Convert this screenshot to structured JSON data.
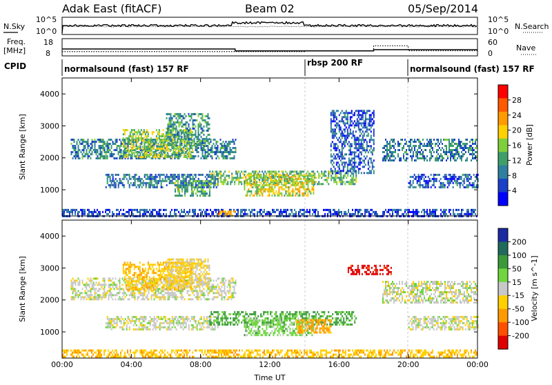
{
  "header": {
    "radar": "Adak East (fitACF)",
    "beam": "Beam 02",
    "date": "05/Sep/2014"
  },
  "noise_panel": {
    "left_label": "N.Sky",
    "right_label": "N.Search",
    "left_ticks": [
      "10^5",
      "10^0"
    ],
    "right_ticks": [
      "10^5",
      "10^0"
    ]
  },
  "freq_panel": {
    "left_label_top": "Freq.",
    "left_label_unit": "[MHz]",
    "right_label": "Nave",
    "left_ticks": [
      "18",
      "8"
    ],
    "right_ticks": [
      "60",
      "0"
    ],
    "freq_steps": [
      {
        "t": 0.0,
        "mhz": 12.0
      },
      {
        "t": 10.0,
        "mhz": 10.9
      },
      {
        "t": 18.0,
        "mhz": 11.6
      },
      {
        "t": 24.0,
        "mhz": 11.6
      }
    ],
    "nave_steps": [
      {
        "t": 0.0,
        "n": 15
      },
      {
        "t": 14.0,
        "n": 18
      },
      {
        "t": 18.0,
        "n": 35
      },
      {
        "t": 20.0,
        "n": 18
      },
      {
        "t": 24.0,
        "n": 18
      }
    ]
  },
  "cpid": {
    "label": "CPID",
    "segments": [
      {
        "start": 0,
        "end": 14,
        "text": "normalsound (fast) 157 RF"
      },
      {
        "start": 14,
        "end": 20,
        "text": "rbsp 200 RF"
      },
      {
        "start": 20,
        "end": 24,
        "text": "normalsound (fast) 157 RF"
      }
    ]
  },
  "chart_data": [
    {
      "type": "heatmap",
      "name": "power",
      "ylabel": "Slant Range [km]",
      "xlabel": "Time UT",
      "xlim": [
        0,
        24
      ],
      "ylim": [
        180,
        4500
      ],
      "yticks": [
        "1000",
        "2000",
        "3000",
        "4000"
      ],
      "xticks": [
        "00:00",
        "04:00",
        "08:00",
        "12:00",
        "16:00",
        "20:00",
        "00:00"
      ],
      "colorbar": {
        "label": "Power [dB]",
        "ticks": [
          "4",
          "8",
          "12",
          "16",
          "20",
          "24",
          "28"
        ],
        "range": [
          0,
          30
        ],
        "colors": [
          "#0000ff",
          "#1a3fc8",
          "#2f7fa0",
          "#3f9f6a",
          "#7fcf3a",
          "#ffd000",
          "#ff9a00",
          "#ff5a00",
          "#ff0000"
        ]
      },
      "echo_bands": [
        {
          "t0": 0.5,
          "t1": 10.0,
          "r0": 2000,
          "r1": 2600,
          "p": 9
        },
        {
          "t0": 3.5,
          "t1": 7.5,
          "r0": 2000,
          "r1": 2900,
          "p": 15
        },
        {
          "t0": 6.0,
          "t1": 8.5,
          "r0": 2400,
          "r1": 3400,
          "p": 11
        },
        {
          "t0": 2.5,
          "t1": 9.0,
          "r0": 1100,
          "r1": 1500,
          "p": 8
        },
        {
          "t0": 6.5,
          "t1": 8.5,
          "r0": 800,
          "r1": 1300,
          "p": 12
        },
        {
          "t0": 8.5,
          "t1": 17.0,
          "r0": 1200,
          "r1": 1600,
          "p": 13
        },
        {
          "t0": 10.5,
          "t1": 14.5,
          "r0": 850,
          "r1": 1500,
          "p": 17
        },
        {
          "t0": 15.5,
          "t1": 18.0,
          "r0": 1500,
          "r1": 3500,
          "p": 6
        },
        {
          "t0": 18.5,
          "t1": 24.0,
          "r0": 1900,
          "r1": 2600,
          "p": 9
        },
        {
          "t0": 20.0,
          "t1": 24.0,
          "r0": 1100,
          "r1": 1500,
          "p": 6
        },
        {
          "t0": 0.0,
          "t1": 24.0,
          "r0": 200,
          "r1": 400,
          "p": 5
        },
        {
          "t0": 9.0,
          "t1": 10.0,
          "r0": 200,
          "r1": 350,
          "p": 22
        }
      ]
    },
    {
      "type": "heatmap",
      "name": "velocity",
      "ylabel": "Slant Range [km]",
      "xlabel": "Time UT",
      "xlim": [
        0,
        24
      ],
      "ylim": [
        180,
        4500
      ],
      "yticks": [
        "1000",
        "2000",
        "3000",
        "4000"
      ],
      "xticks": [
        "00:00",
        "04:00",
        "08:00",
        "12:00",
        "16:00",
        "20:00",
        "00:00"
      ],
      "colorbar": {
        "label": "Velocity [m s^-1]",
        "ticks": [
          "200",
          "100",
          "50",
          "15",
          "-15",
          "-50",
          "-100",
          "-200"
        ],
        "colors": [
          "#1a2aa0",
          "#1f6a5a",
          "#3a9a3a",
          "#6fd63f",
          "#c8c8c8",
          "#ffd000",
          "#ff9a00",
          "#ff5000",
          "#e00000"
        ]
      },
      "echo_bands": [
        {
          "t0": 0.5,
          "t1": 10.0,
          "r0": 2000,
          "r1": 2700,
          "v": 0
        },
        {
          "t0": 3.5,
          "t1": 7.5,
          "r0": 2300,
          "r1": 3200,
          "v": -40
        },
        {
          "t0": 6.0,
          "t1": 8.5,
          "r0": 2400,
          "r1": 3300,
          "v": -20
        },
        {
          "t0": 2.5,
          "t1": 9.0,
          "r0": 1100,
          "r1": 1500,
          "v": 0
        },
        {
          "t0": 8.5,
          "t1": 17.0,
          "r0": 1250,
          "r1": 1650,
          "v": 60
        },
        {
          "t0": 10.5,
          "t1": 14.5,
          "r0": 900,
          "r1": 1450,
          "v": 30
        },
        {
          "t0": 13.5,
          "t1": 15.5,
          "r0": 1000,
          "r1": 1400,
          "v": -60
        },
        {
          "t0": 18.5,
          "t1": 24.0,
          "r0": 1900,
          "r1": 2600,
          "v": 0
        },
        {
          "t0": 20.0,
          "t1": 24.0,
          "r0": 1100,
          "r1": 1500,
          "v": 0
        },
        {
          "t0": 0.0,
          "t1": 24.0,
          "r0": 200,
          "r1": 450,
          "v": -40
        },
        {
          "t0": 16.5,
          "t1": 19.0,
          "r0": 2800,
          "r1": 3100,
          "v": -220
        }
      ]
    }
  ]
}
